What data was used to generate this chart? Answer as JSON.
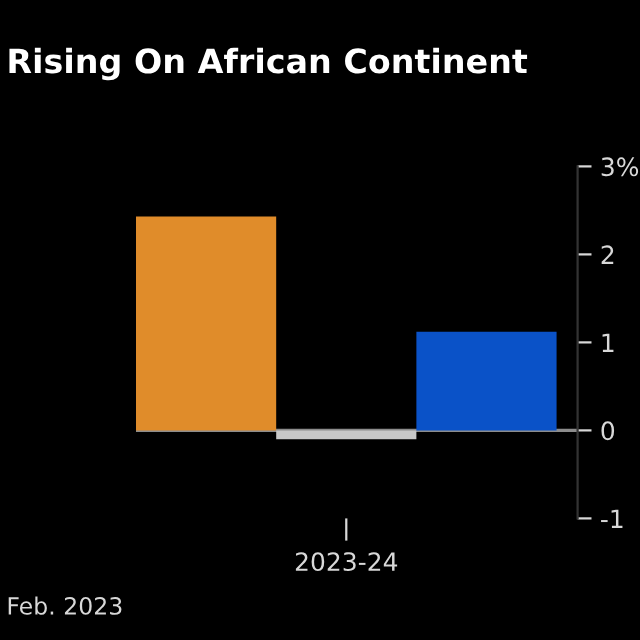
{
  "chart_data": {
    "type": "bar",
    "title": "Rising On African Continent",
    "categories": [
      null,
      "2023-24",
      null
    ],
    "values": [
      2.43,
      -0.1,
      1.12
    ],
    "colors": [
      "#e08c2a",
      "#c8c8c8",
      "#0a52c8"
    ],
    "ylim": [
      -1,
      3
    ],
    "yticks": [
      {
        "value": 3,
        "label": "3%"
      },
      2,
      1,
      0,
      -1
    ],
    "ref_lines": [
      {
        "axis": "y",
        "value": 0,
        "color": "#8c8c8c"
      }
    ],
    "grid": false,
    "legend": false,
    "annotations": [
      "Feb. 2023"
    ]
  }
}
